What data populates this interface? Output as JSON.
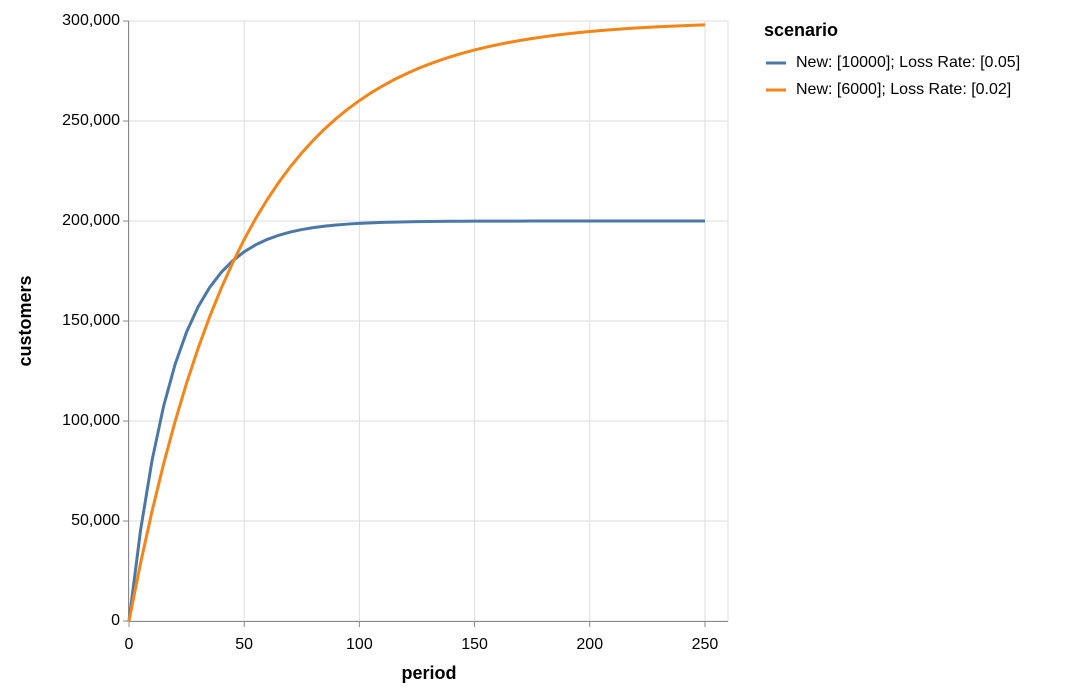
{
  "chart_data": {
    "type": "line",
    "x_label": "period",
    "y_label": "customers",
    "legend_title": "scenario",
    "legend_position": "right",
    "grid": true,
    "x": [
      0,
      5,
      10,
      15,
      20,
      25,
      30,
      35,
      40,
      45,
      50,
      55,
      60,
      65,
      70,
      75,
      80,
      85,
      90,
      95,
      100,
      105,
      110,
      115,
      120,
      125,
      130,
      135,
      140,
      145,
      150,
      155,
      160,
      165,
      170,
      175,
      180,
      185,
      190,
      195,
      200,
      205,
      210,
      215,
      220,
      225,
      230,
      235,
      240,
      245,
      250
    ],
    "series": [
      {
        "name": "New: [10000]; Loss Rate: [0.05]",
        "color": "#4c78a8",
        "values": [
          0,
          45244,
          80253,
          107342,
          128303,
          144522,
          157072,
          166783,
          174298,
          180112,
          184611,
          188092,
          190786,
          192870,
          194483,
          195731,
          196697,
          197444,
          198022,
          198470,
          198816,
          199084,
          199291,
          199451,
          199576,
          199672,
          199746,
          199803,
          199848,
          199882,
          199909,
          199929,
          199945,
          199958,
          199967,
          199975,
          199980,
          199985,
          199988,
          199991,
          199993,
          199995,
          199996,
          199997,
          199998,
          199998,
          199999,
          199999,
          199999,
          200000,
          200000
        ]
      },
      {
        "name": "New: [6000]; Loss Rate: [0.02]",
        "color": "#f58518",
        "values": [
          0,
          28824,
          54878,
          78429,
          99718,
          118961,
          136355,
          152078,
          166290,
          179137,
          190749,
          201246,
          210734,
          219311,
          227063,
          234071,
          240405,
          246131,
          251307,
          255985,
          260214,
          264037,
          267492,
          270615,
          273439,
          275990,
          278297,
          280382,
          282267,
          283971,
          285511,
          286903,
          288161,
          289299,
          290327,
          291257,
          292097,
          292856,
          293542,
          294163,
          294724,
          295231,
          295689,
          296103,
          296477,
          296816,
          297122,
          297398,
          297648,
          297874,
          298079
        ]
      }
    ],
    "xlim": [
      0,
      260
    ],
    "xticks": [
      0,
      50,
      100,
      150,
      200,
      250
    ],
    "ylim": [
      0,
      300000
    ],
    "yticks": [
      0,
      {
        "value": 50000,
        "label": "50,000"
      },
      {
        "value": 100000,
        "label": "100,000"
      },
      {
        "value": 150000,
        "label": "150,000"
      },
      {
        "value": 200000,
        "label": "200,000"
      },
      {
        "value": 250000,
        "label": "250,000"
      },
      {
        "value": 300000,
        "label": "300,000"
      }
    ]
  }
}
